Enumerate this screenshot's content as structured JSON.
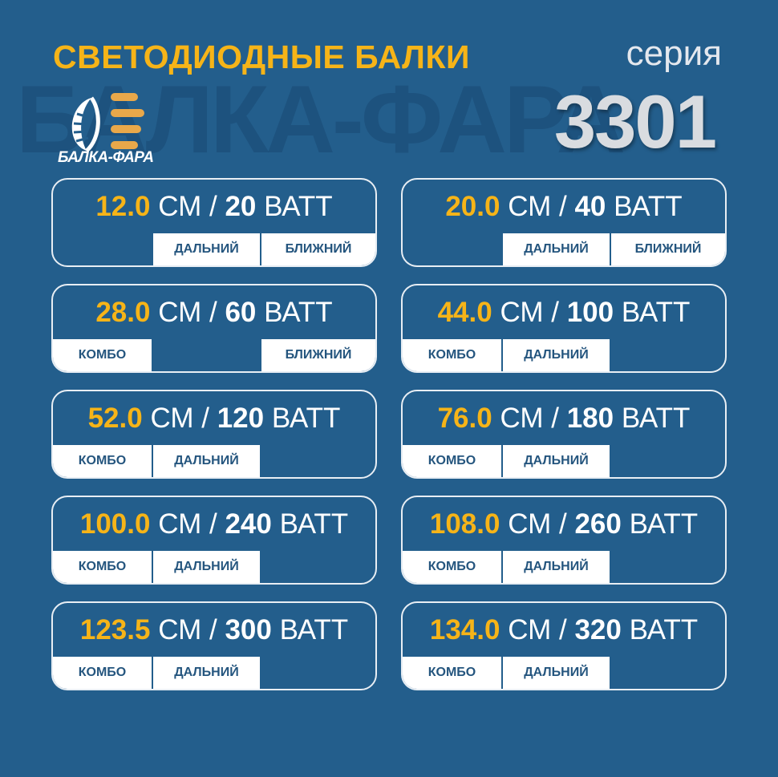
{
  "header": {
    "title": "СВЕТОДИОДНЫЕ БАЛКИ",
    "series_label": "серия",
    "series_number": "3301",
    "watermark": "БАЛКА-ФАРА"
  },
  "logo": {
    "text": "БАЛКА-ФАРА",
    "icon": "headlight-icon"
  },
  "colors": {
    "background": "#235e8c",
    "accent": "#f6b418",
    "tab_text": "#24557e"
  },
  "units": {
    "length": "СМ",
    "separator": "/",
    "power": "ВАТТ"
  },
  "products": [
    {
      "length": "12.0",
      "watts": "20",
      "slots": [
        null,
        "ДАЛЬНИЙ",
        "БЛИЖНИЙ"
      ]
    },
    {
      "length": "20.0",
      "watts": "40",
      "slots": [
        null,
        "ДАЛЬНИЙ",
        "БЛИЖНИЙ"
      ]
    },
    {
      "length": "28.0",
      "watts": "60",
      "slots": [
        "КОМБО",
        null,
        "БЛИЖНИЙ"
      ]
    },
    {
      "length": "44.0",
      "watts": "100",
      "slots": [
        "КОМБО",
        "ДАЛЬНИЙ",
        null
      ]
    },
    {
      "length": "52.0",
      "watts": "120",
      "slots": [
        "КОМБО",
        "ДАЛЬНИЙ",
        null
      ]
    },
    {
      "length": "76.0",
      "watts": "180",
      "slots": [
        "КОМБО",
        "ДАЛЬНИЙ",
        null
      ]
    },
    {
      "length": "100.0",
      "watts": "240",
      "slots": [
        "КОМБО",
        "ДАЛЬНИЙ",
        null
      ]
    },
    {
      "length": "108.0",
      "watts": "260",
      "slots": [
        "КОМБО",
        "ДАЛЬНИЙ",
        null
      ]
    },
    {
      "length": "123.5",
      "watts": "300",
      "slots": [
        "КОМБО",
        "ДАЛЬНИЙ",
        null
      ]
    },
    {
      "length": "134.0",
      "watts": "320",
      "slots": [
        "КОМБО",
        "ДАЛЬНИЙ",
        null
      ]
    }
  ]
}
